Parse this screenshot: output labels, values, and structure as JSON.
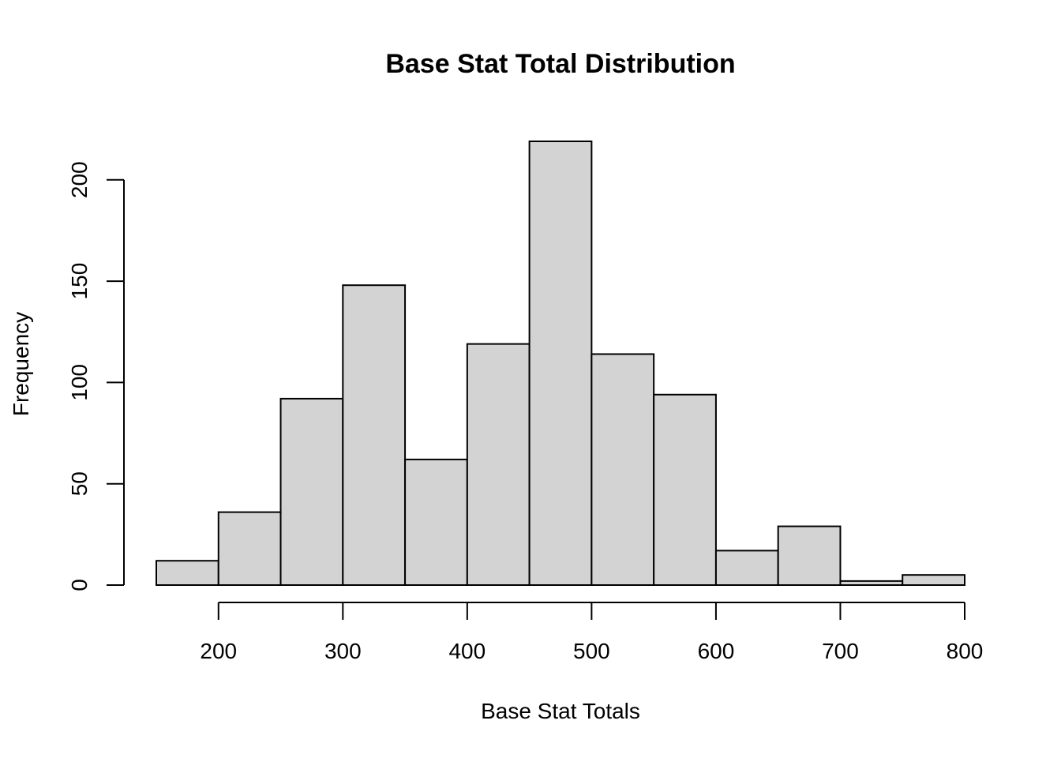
{
  "chart_data": {
    "type": "bar",
    "title": "Base Stat Total Distribution",
    "xlabel": "Base Stat Totals",
    "ylabel": "Frequency",
    "bins": [
      {
        "start": 150,
        "end": 200,
        "count": 12
      },
      {
        "start": 200,
        "end": 250,
        "count": 36
      },
      {
        "start": 250,
        "end": 300,
        "count": 92
      },
      {
        "start": 300,
        "end": 350,
        "count": 148
      },
      {
        "start": 350,
        "end": 400,
        "count": 62
      },
      {
        "start": 400,
        "end": 450,
        "count": 119
      },
      {
        "start": 450,
        "end": 500,
        "count": 219
      },
      {
        "start": 500,
        "end": 550,
        "count": 114
      },
      {
        "start": 550,
        "end": 600,
        "count": 94
      },
      {
        "start": 600,
        "end": 650,
        "count": 17
      },
      {
        "start": 650,
        "end": 700,
        "count": 29
      },
      {
        "start": 700,
        "end": 750,
        "count": 2
      },
      {
        "start": 750,
        "end": 800,
        "count": 5
      }
    ],
    "x_ticks": [
      200,
      300,
      400,
      500,
      600,
      700,
      800
    ],
    "y_ticks": [
      0,
      50,
      100,
      150,
      200
    ],
    "xlim": [
      150,
      800
    ],
    "ylim": [
      0,
      219
    ],
    "bar_color": "#d3d3d3",
    "grid": false
  }
}
